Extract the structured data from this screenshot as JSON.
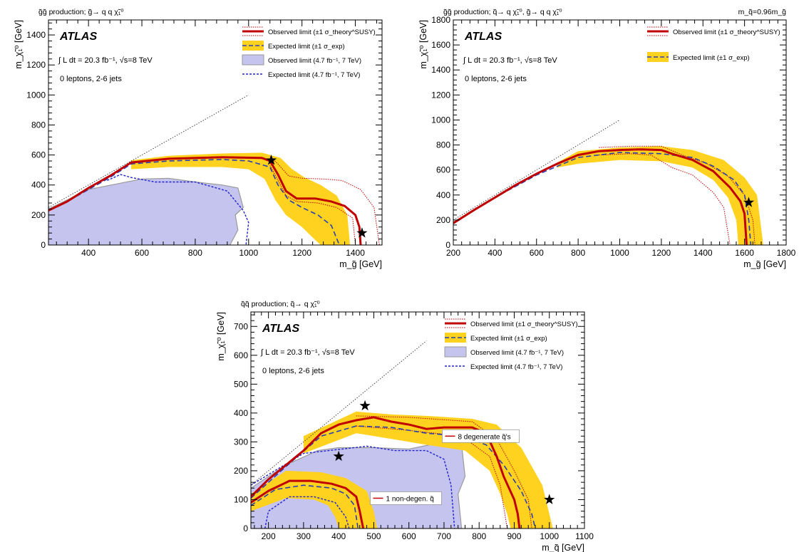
{
  "colors": {
    "observed": "#c00000",
    "expected": "#2a3fb0",
    "band": "#ffd21f",
    "old_fill": "#c4c4ef",
    "old_line": "#9a9a9a",
    "old_expected": "#2222cc",
    "diagonal": "#333333"
  },
  "chart_data": [
    {
      "id": "gg",
      "type": "area",
      "process": "g̃g̃ production; g̃→ q q χ̃₁⁰",
      "corner_note": "",
      "atlas": "ATLAS",
      "lumi": "∫ L dt = 20.3 fb⁻¹,  √s=8 TeV",
      "selection": "0 leptons, 2-6 jets",
      "xlabel": "m_g̃ [GeV]",
      "ylabel": "m_χ̃₁⁰ [GeV]",
      "xlim": [
        250,
        1500
      ],
      "ylim": [
        0,
        1500
      ],
      "xticks": [
        "400",
        "600",
        "800",
        "1000",
        "1200",
        "1400"
      ],
      "yticks": [
        "0",
        "200",
        "400",
        "600",
        "800",
        "1000",
        "1200",
        "1400"
      ],
      "legend": [
        {
          "kind": "observed",
          "label": "Observed limit (±1 σ_theory^SUSY)"
        },
        {
          "kind": "expected",
          "label": "Expected limit (±1 σ_exp)"
        },
        {
          "kind": "old_obs",
          "label": "Observed limit (4.7 fb⁻¹, 7 TeV)"
        },
        {
          "kind": "old_exp",
          "label": "Expected limit (4.7 fb⁻¹, 7 TeV)"
        }
      ],
      "diagonal": [
        [
          250,
          250
        ],
        [
          1000,
          1000
        ]
      ],
      "observed": [
        [
          250,
          230
        ],
        [
          320,
          290
        ],
        [
          400,
          380
        ],
        [
          480,
          460
        ],
        [
          560,
          550
        ],
        [
          700,
          575
        ],
        [
          900,
          585
        ],
        [
          1050,
          580
        ],
        [
          1080,
          560
        ],
        [
          1110,
          470
        ],
        [
          1140,
          360
        ],
        [
          1180,
          310
        ],
        [
          1250,
          310
        ],
        [
          1310,
          290
        ],
        [
          1360,
          260
        ],
        [
          1400,
          200
        ],
        [
          1415,
          120
        ],
        [
          1420,
          0
        ]
      ],
      "obs_up": [
        [
          1080,
          590
        ],
        [
          1110,
          540
        ],
        [
          1150,
          460
        ],
        [
          1200,
          445
        ],
        [
          1280,
          440
        ],
        [
          1350,
          430
        ],
        [
          1420,
          370
        ],
        [
          1470,
          250
        ],
        [
          1490,
          0
        ]
      ],
      "obs_down": [
        [
          1080,
          530
        ],
        [
          1110,
          430
        ],
        [
          1140,
          330
        ],
        [
          1180,
          290
        ],
        [
          1260,
          280
        ],
        [
          1330,
          250
        ],
        [
          1390,
          180
        ],
        [
          1400,
          0
        ]
      ],
      "expected": [
        [
          250,
          230
        ],
        [
          320,
          290
        ],
        [
          400,
          370
        ],
        [
          480,
          450
        ],
        [
          560,
          540
        ],
        [
          700,
          560
        ],
        [
          900,
          570
        ],
        [
          1000,
          560
        ],
        [
          1080,
          520
        ],
        [
          1110,
          400
        ],
        [
          1150,
          300
        ],
        [
          1200,
          250
        ],
        [
          1260,
          200
        ],
        [
          1310,
          130
        ],
        [
          1340,
          0
        ]
      ],
      "band_up": [
        [
          560,
          565
        ],
        [
          700,
          595
        ],
        [
          900,
          610
        ],
        [
          1050,
          615
        ],
        [
          1120,
          580
        ],
        [
          1160,
          510
        ],
        [
          1210,
          450
        ],
        [
          1270,
          400
        ],
        [
          1330,
          330
        ],
        [
          1370,
          200
        ],
        [
          1380,
          0
        ]
      ],
      "band_down": [
        [
          560,
          505
        ],
        [
          700,
          520
        ],
        [
          900,
          520
        ],
        [
          1000,
          505
        ],
        [
          1060,
          440
        ],
        [
          1100,
          300
        ],
        [
          1140,
          200
        ],
        [
          1200,
          120
        ],
        [
          1240,
          50
        ],
        [
          1270,
          0
        ]
      ],
      "old_obs_area": [
        [
          250,
          0
        ],
        [
          250,
          240
        ],
        [
          400,
          370
        ],
        [
          600,
          440
        ],
        [
          700,
          445
        ],
        [
          800,
          420
        ],
        [
          900,
          400
        ],
        [
          960,
          380
        ],
        [
          980,
          250
        ],
        [
          950,
          200
        ],
        [
          960,
          100
        ],
        [
          930,
          0
        ]
      ],
      "old_exp": [
        [
          470,
          430
        ],
        [
          520,
          470
        ],
        [
          560,
          450
        ],
        [
          650,
          420
        ],
        [
          800,
          420
        ],
        [
          920,
          360
        ],
        [
          980,
          230
        ],
        [
          1000,
          150
        ],
        [
          990,
          0
        ]
      ],
      "stars": [
        [
          1085,
          565
        ],
        [
          1425,
          80
        ]
      ]
    },
    {
      "id": "gg_sq",
      "type": "area",
      "process": "g̃g̃ production; q̃→ q χ̃₁⁰, g̃→ q q χ̃₁⁰",
      "corner_note": "m_q̃=0.96m_g̃",
      "atlas": "ATLAS",
      "lumi": "∫ L dt = 20.3 fb⁻¹,  √s=8 TeV",
      "selection": "0 leptons, 2-6 jets",
      "xlabel": "m_g̃ [GeV]",
      "ylabel": "m_χ̃₁⁰ [GeV]",
      "xlim": [
        200,
        1800
      ],
      "ylim": [
        0,
        1800
      ],
      "xticks": [
        "200",
        "400",
        "600",
        "800",
        "1000",
        "1200",
        "1400",
        "1600",
        "1800"
      ],
      "yticks": [
        "0",
        "200",
        "400",
        "600",
        "800",
        "1000",
        "1200",
        "1400",
        "1600",
        "1800"
      ],
      "legend": [
        {
          "kind": "observed",
          "label": "Observed limit (±1 σ_theory^SUSY)"
        },
        {
          "kind": "expected",
          "label": "Expected limit (±1 σ_exp)"
        }
      ],
      "diagonal": [
        [
          200,
          200
        ],
        [
          1000,
          1000
        ]
      ],
      "observed": [
        [
          200,
          175
        ],
        [
          300,
          280
        ],
        [
          400,
          380
        ],
        [
          500,
          480
        ],
        [
          600,
          570
        ],
        [
          700,
          650
        ],
        [
          800,
          720
        ],
        [
          900,
          750
        ],
        [
          1000,
          760
        ],
        [
          1100,
          765
        ],
        [
          1200,
          760
        ],
        [
          1250,
          730
        ],
        [
          1350,
          680
        ],
        [
          1450,
          590
        ],
        [
          1530,
          460
        ],
        [
          1580,
          350
        ],
        [
          1600,
          250
        ],
        [
          1610,
          0
        ]
      ],
      "obs_up": [
        [
          900,
          780
        ],
        [
          1050,
          790
        ],
        [
          1200,
          790
        ],
        [
          1300,
          720
        ],
        [
          1420,
          650
        ],
        [
          1520,
          550
        ],
        [
          1600,
          400
        ],
        [
          1640,
          200
        ],
        [
          1650,
          0
        ]
      ],
      "obs_down": [
        [
          900,
          720
        ],
        [
          1050,
          730
        ],
        [
          1150,
          720
        ],
        [
          1250,
          620
        ],
        [
          1350,
          560
        ],
        [
          1450,
          420
        ],
        [
          1500,
          300
        ],
        [
          1530,
          0
        ]
      ],
      "expected": [
        [
          200,
          180
        ],
        [
          400,
          380
        ],
        [
          600,
          560
        ],
        [
          800,
          700
        ],
        [
          1000,
          740
        ],
        [
          1200,
          730
        ],
        [
          1350,
          700
        ],
        [
          1450,
          630
        ],
        [
          1550,
          520
        ],
        [
          1600,
          400
        ],
        [
          1620,
          200
        ],
        [
          1630,
          0
        ]
      ],
      "band_up": [
        [
          700,
          660
        ],
        [
          800,
          750
        ],
        [
          1000,
          780
        ],
        [
          1200,
          790
        ],
        [
          1350,
          760
        ],
        [
          1500,
          680
        ],
        [
          1600,
          540
        ],
        [
          1660,
          400
        ],
        [
          1690,
          0
        ]
      ],
      "band_down": [
        [
          700,
          620
        ],
        [
          800,
          650
        ],
        [
          1000,
          680
        ],
        [
          1200,
          670
        ],
        [
          1350,
          620
        ],
        [
          1450,
          520
        ],
        [
          1520,
          380
        ],
        [
          1560,
          200
        ],
        [
          1570,
          0
        ]
      ],
      "stars": [
        [
          1620,
          340
        ]
      ]
    },
    {
      "id": "qq",
      "type": "area",
      "process": "q̃q̃ production; q̃→ q χ̃₁⁰",
      "corner_note": "",
      "atlas": "ATLAS",
      "lumi": "∫ L dt = 20.3 fb⁻¹,  √s=8 TeV",
      "selection": "0 leptons, 2-6 jets",
      "xlabel": "m_q̃ [GeV]",
      "ylabel": "m_χ̃₁⁰ [GeV]",
      "xlim": [
        150,
        1100
      ],
      "ylim": [
        0,
        750
      ],
      "xticks": [
        "200",
        "300",
        "400",
        "500",
        "600",
        "700",
        "800",
        "900",
        "1000",
        "1100"
      ],
      "yticks": [
        "0",
        "100",
        "200",
        "300",
        "400",
        "500",
        "600",
        "700"
      ],
      "legend": [
        {
          "kind": "observed",
          "label": "Observed limit (±1 σ_theory^SUSY)"
        },
        {
          "kind": "expected",
          "label": "Expected limit (±1 σ_exp)"
        },
        {
          "kind": "old_obs",
          "label": "Observed limit (4.7 fb⁻¹, 7 TeV)"
        },
        {
          "kind": "old_exp",
          "label": "Expected limit (4.7 fb⁻¹, 7 TeV)"
        }
      ],
      "labels": {
        "degenerate": "8 degenerate q̃'s",
        "nondegen": "1 non-degen. q̃"
      },
      "diagonal": [
        [
          150,
          150
        ],
        [
          650,
          650
        ]
      ],
      "observed": [
        [
          150,
          110
        ],
        [
          200,
          170
        ],
        [
          250,
          220
        ],
        [
          300,
          270
        ],
        [
          350,
          330
        ],
        [
          400,
          360
        ],
        [
          450,
          375
        ],
        [
          500,
          385
        ],
        [
          550,
          370
        ],
        [
          600,
          360
        ],
        [
          650,
          345
        ],
        [
          700,
          350
        ],
        [
          780,
          350
        ],
        [
          820,
          330
        ],
        [
          850,
          250
        ],
        [
          870,
          180
        ],
        [
          900,
          100
        ],
        [
          910,
          50
        ],
        [
          915,
          0
        ]
      ],
      "obs_up": [
        [
          450,
          390
        ],
        [
          600,
          385
        ],
        [
          780,
          370
        ],
        [
          850,
          310
        ],
        [
          900,
          200
        ],
        [
          940,
          100
        ],
        [
          950,
          0
        ]
      ],
      "obs_down": [
        [
          450,
          355
        ],
        [
          600,
          340
        ],
        [
          750,
          320
        ],
        [
          830,
          250
        ],
        [
          860,
          150
        ],
        [
          880,
          0
        ]
      ],
      "expected": [
        [
          150,
          105
        ],
        [
          250,
          215
        ],
        [
          350,
          320
        ],
        [
          450,
          355
        ],
        [
          550,
          350
        ],
        [
          650,
          330
        ],
        [
          750,
          320
        ],
        [
          820,
          290
        ],
        [
          870,
          220
        ],
        [
          920,
          130
        ],
        [
          950,
          50
        ],
        [
          960,
          0
        ]
      ],
      "band_up": [
        [
          300,
          320
        ],
        [
          450,
          405
        ],
        [
          550,
          395
        ],
        [
          650,
          390
        ],
        [
          780,
          380
        ],
        [
          850,
          360
        ],
        [
          920,
          280
        ],
        [
          980,
          150
        ],
        [
          1010,
          0
        ]
      ],
      "band_down": [
        [
          300,
          260
        ],
        [
          450,
          330
        ],
        [
          550,
          310
        ],
        [
          650,
          290
        ],
        [
          760,
          270
        ],
        [
          830,
          200
        ],
        [
          860,
          120
        ],
        [
          880,
          50
        ],
        [
          890,
          0
        ]
      ],
      "old_obs_area": [
        [
          150,
          0
        ],
        [
          150,
          140
        ],
        [
          250,
          220
        ],
        [
          340,
          270
        ],
        [
          400,
          280
        ],
        [
          500,
          280
        ],
        [
          600,
          275
        ],
        [
          700,
          300
        ],
        [
          750,
          290
        ],
        [
          760,
          180
        ],
        [
          740,
          120
        ],
        [
          750,
          0
        ]
      ],
      "old_exp": [
        [
          150,
          150
        ],
        [
          300,
          260
        ],
        [
          480,
          285
        ],
        [
          560,
          270
        ],
        [
          650,
          270
        ],
        [
          700,
          240
        ],
        [
          720,
          150
        ],
        [
          730,
          0
        ]
      ],
      "observed_nd": [
        [
          150,
          90
        ],
        [
          200,
          130
        ],
        [
          260,
          165
        ],
        [
          320,
          165
        ],
        [
          380,
          155
        ],
        [
          420,
          140
        ],
        [
          450,
          110
        ],
        [
          460,
          60
        ],
        [
          470,
          0
        ]
      ],
      "expected_nd": [
        [
          150,
          80
        ],
        [
          220,
          135
        ],
        [
          300,
          150
        ],
        [
          380,
          140
        ],
        [
          420,
          120
        ],
        [
          445,
          80
        ],
        [
          455,
          0
        ]
      ],
      "band_nd_up": [
        [
          150,
          120
        ],
        [
          250,
          200
        ],
        [
          350,
          195
        ],
        [
          420,
          175
        ],
        [
          480,
          130
        ],
        [
          500,
          60
        ],
        [
          510,
          0
        ]
      ],
      "band_nd_down": [
        [
          150,
          60
        ],
        [
          250,
          105
        ],
        [
          330,
          100
        ],
        [
          370,
          80
        ],
        [
          390,
          40
        ],
        [
          400,
          0
        ]
      ],
      "old_exp_nd": [
        [
          190,
          0
        ],
        [
          200,
          60
        ],
        [
          260,
          110
        ],
        [
          330,
          110
        ],
        [
          390,
          90
        ],
        [
          420,
          40
        ],
        [
          430,
          0
        ]
      ],
      "stars": [
        [
          475,
          425
        ],
        [
          400,
          250
        ],
        [
          1000,
          100
        ]
      ]
    }
  ]
}
